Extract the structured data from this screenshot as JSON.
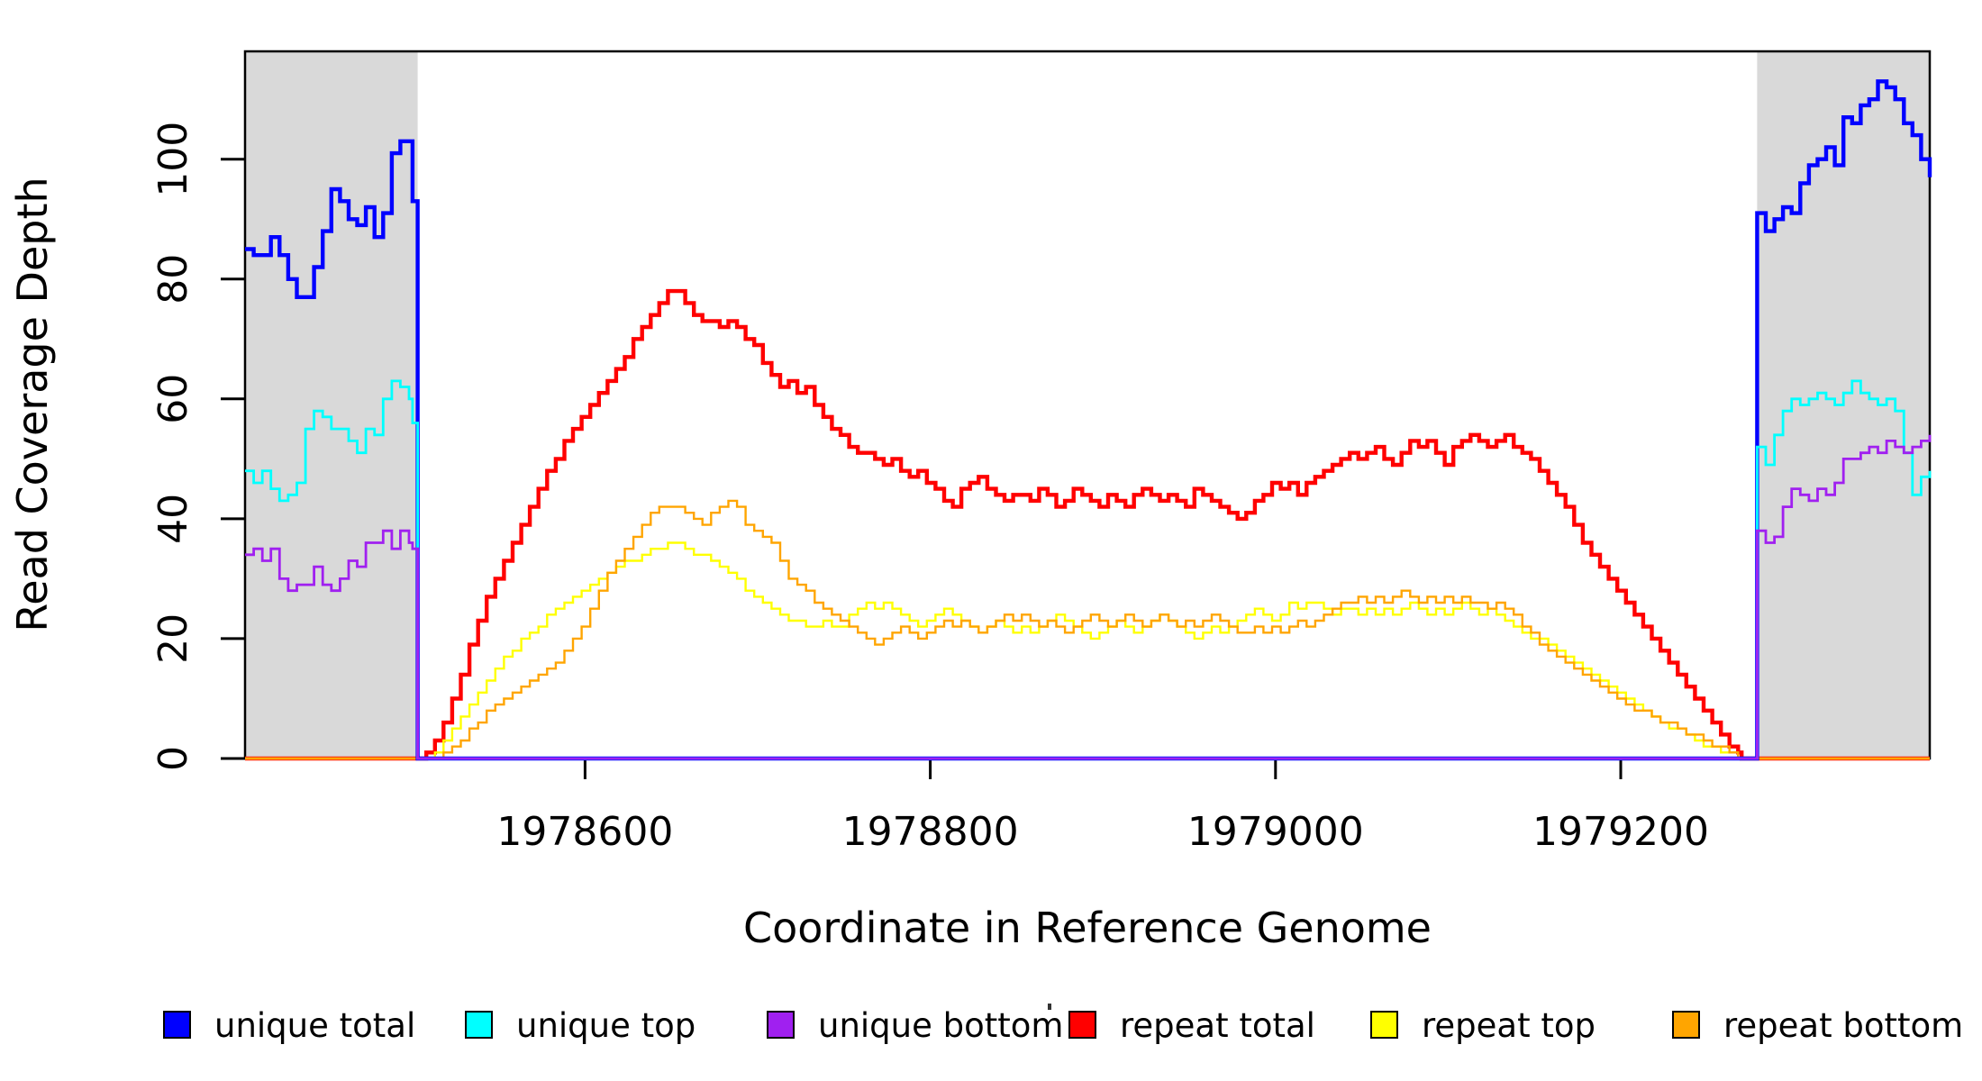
{
  "y_axis": {
    "label": "Read Coverage Depth",
    "tick_labels": [
      "0",
      "20",
      "40",
      "60",
      "80",
      "100"
    ]
  },
  "x_axis": {
    "label": "Coordinate in Reference Genome",
    "tick_labels": [
      "1978600",
      "1978800",
      "1979000",
      "1979200"
    ]
  },
  "legend": {
    "items": [
      {
        "label": "unique total",
        "color": "#0000FF"
      },
      {
        "label": "unique top",
        "color": "#00FFFF"
      },
      {
        "label": "unique bottom",
        "color": "#A020F0"
      },
      {
        "label": "repeat total",
        "color": "#FF0000"
      },
      {
        "label": "repeat top",
        "color": "#FFFF00"
      },
      {
        "label": "repeat bottom",
        "color": "#FFA500"
      }
    ]
  },
  "chart_data": {
    "type": "line",
    "line_style": "step",
    "title": "",
    "xlabel": "Coordinate in Reference Genome",
    "ylabel": "Read Coverage Depth",
    "xlim": [
      1978403,
      1979379
    ],
    "ylim": [
      0,
      118
    ],
    "x_ticks": [
      1978600,
      1978800,
      1979000,
      1979200
    ],
    "y_ticks": [
      0,
      20,
      40,
      60,
      80,
      100
    ],
    "grid": false,
    "legend_position": "bottom",
    "shade_color": "#D9D9D9",
    "shaded_regions": [
      {
        "x0": 1978403,
        "x1": 1978503
      },
      {
        "x0": 1979279,
        "x1": 1979379
      }
    ],
    "series": [
      {
        "name": "repeat total",
        "color": "#FF0000",
        "line_width": 4.4,
        "segments": [
          {
            "x0": 1978403,
            "dx": 100,
            "values": [
              0,
              0
            ]
          },
          {
            "x0": 1978508,
            "dx": 5,
            "values": [
              1,
              3,
              6,
              10,
              14,
              19,
              23,
              27,
              30,
              33,
              36,
              39,
              42,
              45,
              48,
              50,
              53,
              55,
              57,
              59,
              61,
              63,
              65,
              67,
              70,
              72,
              74,
              76,
              78
            ]
          },
          {
            "x0": 1978653,
            "dx": 5,
            "values": [
              78,
              76,
              74,
              73,
              73,
              72,
              73,
              72,
              70,
              69,
              66,
              64,
              62,
              63,
              61,
              62,
              59,
              57,
              55,
              54
            ]
          },
          {
            "x0": 1978753,
            "dx": 5,
            "values": [
              52,
              51,
              51,
              50,
              49,
              50,
              48,
              47,
              48,
              46,
              45,
              43,
              42,
              45,
              46,
              47,
              45,
              44,
              43,
              44
            ]
          },
          {
            "x0": 1978853,
            "dx": 5,
            "values": [
              44,
              43,
              45,
              44,
              42,
              43,
              45,
              44,
              43,
              42,
              44,
              43,
              42,
              44,
              45,
              44,
              43,
              44,
              43,
              42
            ]
          },
          {
            "x0": 1978953,
            "dx": 5,
            "values": [
              45,
              44,
              43,
              42,
              41,
              40,
              41,
              43,
              44,
              46,
              45,
              46,
              44,
              46,
              47,
              48,
              49,
              50,
              51,
              50
            ]
          },
          {
            "x0": 1979053,
            "dx": 5,
            "values": [
              51,
              52,
              50,
              49,
              51,
              53,
              52,
              53,
              51,
              49,
              52,
              53,
              54,
              53,
              52,
              53,
              54,
              52,
              51,
              50
            ]
          },
          {
            "x0": 1979153,
            "dx": 5,
            "values": [
              48,
              46,
              44,
              42,
              39,
              36,
              34,
              32,
              30,
              28,
              26,
              24,
              22,
              20,
              18,
              16,
              14,
              12,
              10,
              8,
              6,
              4,
              2,
              1
            ]
          },
          {
            "x0": 1979270,
            "dx": 109,
            "values": [
              0,
              0
            ]
          }
        ]
      },
      {
        "name": "repeat top",
        "color": "#FFFF00",
        "line_width": 2.4,
        "segments": [
          {
            "x0": 1978403,
            "dx": 100,
            "values": [
              0,
              0
            ]
          },
          {
            "x0": 1978508,
            "dx": 5,
            "values": [
              0,
              1,
              3,
              5,
              7,
              9,
              11,
              13,
              15,
              17,
              18,
              20,
              21,
              22,
              24,
              25,
              26,
              27,
              28,
              29,
              30,
              31,
              32,
              33,
              33,
              34,
              35,
              35,
              36
            ]
          },
          {
            "x0": 1978653,
            "dx": 5,
            "values": [
              36,
              35,
              34,
              34,
              33,
              32,
              31,
              30,
              28,
              27,
              26,
              25,
              24,
              23,
              23,
              22,
              22,
              23,
              22,
              22
            ]
          },
          {
            "x0": 1978753,
            "dx": 5,
            "values": [
              24,
              25,
              26,
              25,
              26,
              25,
              24,
              23,
              22,
              23,
              24,
              25,
              24,
              23,
              22,
              21,
              22,
              23,
              22,
              21
            ]
          },
          {
            "x0": 1978853,
            "dx": 5,
            "values": [
              22,
              21,
              22,
              23,
              24,
              23,
              22,
              21,
              20,
              21,
              22,
              23,
              22,
              21,
              22,
              23,
              24,
              23,
              22,
              21
            ]
          },
          {
            "x0": 1978953,
            "dx": 5,
            "values": [
              20,
              21,
              22,
              21,
              22,
              23,
              24,
              25,
              24,
              23,
              24,
              26,
              25,
              26,
              26,
              25,
              24,
              25,
              25,
              24
            ]
          },
          {
            "x0": 1979053,
            "dx": 5,
            "values": [
              25,
              24,
              25,
              24,
              25,
              26,
              25,
              24,
              25,
              24,
              25,
              26,
              25,
              24,
              25,
              24,
              23,
              22,
              21,
              20
            ]
          },
          {
            "x0": 1979153,
            "dx": 5,
            "values": [
              20,
              19,
              18,
              17,
              16,
              15,
              14,
              13,
              12,
              11,
              10,
              9,
              8,
              7,
              6,
              5,
              5,
              4,
              3,
              2,
              2,
              1,
              1
            ]
          },
          {
            "x0": 1979268,
            "dx": 111,
            "values": [
              0,
              0
            ]
          }
        ]
      },
      {
        "name": "repeat bottom",
        "color": "#FFA500",
        "line_width": 2.4,
        "segments": [
          {
            "x0": 1978403,
            "dx": 100,
            "values": [
              0,
              0
            ]
          },
          {
            "x0": 1978508,
            "dx": 5,
            "values": [
              0,
              0,
              1,
              2,
              3,
              5,
              6,
              8,
              9,
              10,
              11,
              12,
              13,
              14,
              15,
              16,
              18,
              20,
              22,
              25,
              28,
              31,
              33,
              35,
              37,
              39,
              41,
              42,
              42
            ]
          },
          {
            "x0": 1978653,
            "dx": 5,
            "values": [
              42,
              41,
              40,
              39,
              41,
              42,
              43,
              42,
              39,
              38,
              37,
              36,
              33,
              30,
              29,
              28,
              26,
              25,
              24,
              23
            ]
          },
          {
            "x0": 1978753,
            "dx": 5,
            "values": [
              22,
              21,
              20,
              19,
              20,
              21,
              22,
              21,
              20,
              21,
              22,
              23,
              22,
              23,
              22,
              21,
              22,
              23,
              24,
              23
            ]
          },
          {
            "x0": 1978853,
            "dx": 5,
            "values": [
              24,
              23,
              22,
              23,
              22,
              21,
              22,
              23,
              24,
              23,
              22,
              23,
              24,
              23,
              22,
              23,
              24,
              23,
              22,
              23
            ]
          },
          {
            "x0": 1978953,
            "dx": 5,
            "values": [
              22,
              23,
              24,
              23,
              22,
              21,
              21,
              22,
              21,
              22,
              21,
              22,
              23,
              22,
              23,
              24,
              25,
              26,
              26,
              27
            ]
          },
          {
            "x0": 1979053,
            "dx": 5,
            "values": [
              26,
              27,
              26,
              27,
              28,
              27,
              26,
              27,
              26,
              27,
              26,
              27,
              26,
              26,
              25,
              26,
              25,
              24,
              22,
              21
            ]
          },
          {
            "x0": 1979153,
            "dx": 5,
            "values": [
              19,
              18,
              17,
              16,
              15,
              14,
              13,
              12,
              11,
              10,
              9,
              8,
              8,
              7,
              6,
              6,
              5,
              4,
              4,
              3,
              2,
              2,
              1
            ]
          },
          {
            "x0": 1979268,
            "dx": 111,
            "values": [
              0,
              0
            ]
          }
        ]
      },
      {
        "name": "unique total",
        "color": "#0000FF",
        "line_width": 4.4,
        "segments": [
          {
            "x0": 1978403,
            "dx": 5,
            "values": [
              85,
              84,
              84,
              87,
              84,
              80,
              77,
              77,
              82,
              88,
              95,
              93,
              90,
              89,
              92,
              87,
              91,
              101,
              103,
              103
            ]
          },
          {
            "x0": 1978500,
            "dx": 3,
            "values": [
              93,
              0
            ]
          },
          {
            "x0": 1979279,
            "dx": 5,
            "values": [
              91,
              88,
              90,
              92,
              91,
              96,
              99,
              100,
              102,
              99,
              107,
              106,
              109,
              110,
              113,
              112,
              110,
              106,
              104,
              100
            ]
          },
          {
            "x0": 1979379,
            "dx": 1,
            "values": [
              97
            ]
          }
        ]
      },
      {
        "name": "unique top",
        "color": "#00FFFF",
        "line_width": 2.8,
        "segments": [
          {
            "x0": 1978403,
            "dx": 5,
            "values": [
              48,
              46,
              48,
              45,
              43,
              44,
              46,
              55,
              58,
              57,
              55,
              55,
              53,
              51,
              55,
              54,
              60,
              63,
              62,
              60
            ]
          },
          {
            "x0": 1978500,
            "dx": 3,
            "values": [
              56,
              0
            ]
          },
          {
            "x0": 1979279,
            "dx": 5,
            "values": [
              52,
              49,
              54,
              58,
              60,
              59,
              60,
              61,
              60,
              59,
              61,
              63,
              61,
              60,
              59,
              60,
              58,
              51,
              44,
              47
            ]
          },
          {
            "x0": 1979379,
            "dx": 1,
            "values": [
              48
            ]
          }
        ]
      },
      {
        "name": "unique bottom",
        "color": "#A020F0",
        "line_width": 2.8,
        "segments": [
          {
            "x0": 1978403,
            "dx": 5,
            "values": [
              34,
              35,
              33,
              35,
              30,
              28,
              29,
              29,
              32,
              29,
              28,
              30,
              33,
              32,
              36,
              36,
              38,
              35,
              38,
              36
            ]
          },
          {
            "x0": 1978500,
            "dx": 3,
            "values": [
              35,
              0
            ]
          },
          {
            "x0": 1979279,
            "dx": 5,
            "values": [
              38,
              36,
              37,
              42,
              45,
              44,
              43,
              45,
              44,
              46,
              50,
              50,
              51,
              52,
              51,
              53,
              52,
              51,
              52,
              53
            ]
          },
          {
            "x0": 1979379,
            "dx": 1,
            "values": [
              54
            ]
          }
        ]
      }
    ]
  }
}
